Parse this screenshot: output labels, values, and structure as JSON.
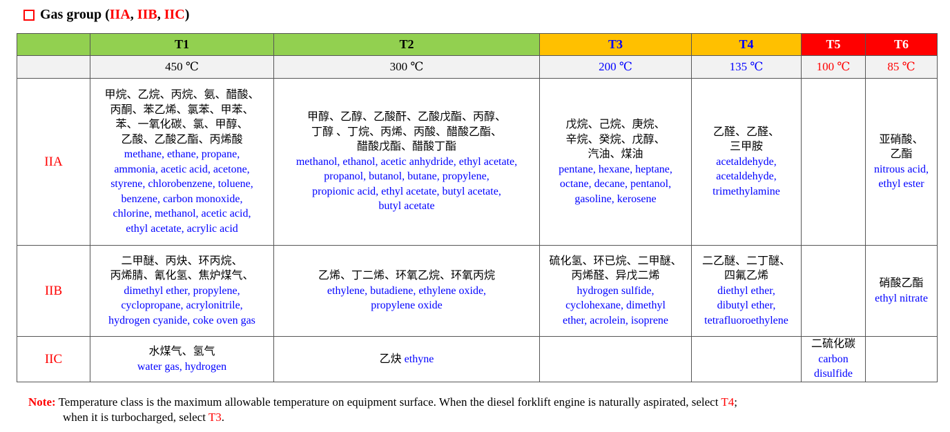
{
  "title": {
    "prefix": "Gas group (",
    "g1": "IIA",
    ",1": ", ",
    "g2": "IIB",
    ",2": ", ",
    "g3": "IIC",
    "suffix": ")",
    "sep": ", "
  },
  "header": [
    "",
    "T1",
    "T2",
    "T3",
    "T4",
    "T5",
    "T6"
  ],
  "temps": [
    "",
    "450 ℃",
    "300 ℃",
    "200 ℃",
    "135 ℃",
    "100 ℃",
    "85 ℃"
  ],
  "colors": {
    "t1_t2": "#92d050",
    "t3_t4": "#ffc000",
    "t5_t6": "#ff0000",
    "english": "#0000ff",
    "accent": "#ff0000"
  },
  "rows": [
    {
      "group": "IIA",
      "cells": [
        {
          "cn": "甲烷、乙烷、丙烷、氨、醋酸、\n丙酮、苯乙烯、氯苯、甲苯、\n苯、一氧化碳、氯、甲醇、\n乙酸、乙酸乙酯、丙烯酸",
          "en": "methane, ethane, propane,\nammonia, acetic acid, acetone,\nstyrene, chlorobenzene, toluene,\nbenzene, carbon monoxide,\nchlorine, methanol, acetic acid,\nethyl acetate, acrylic acid"
        },
        {
          "cn": "甲醇、乙醇、乙酸酐、乙酸戊酯、丙醇、\n丁醇 、丁烷、丙烯、丙酸、醋酸乙酯、\n醋酸戊酯、醋酸丁酯",
          "en": "methanol, ethanol, acetic anhydride, ethyl acetate,\npropanol, butanol, butane, propylene,\npropionic acid, ethyl acetate, butyl acetate,\nbutyl acetate"
        },
        {
          "cn": "戊烷、己烷、庚烷、\n辛烷、癸烷、戊醇、\n汽油、煤油",
          "en": "pentane, hexane, heptane,\noctane, decane, pentanol,\ngasoline, kerosene"
        },
        {
          "cn": "乙醛、乙醛、\n三甲胺",
          "en": "acetaldehyde,\nacetaldehyde,\ntrimethylamine"
        },
        {
          "cn": "",
          "en": ""
        },
        {
          "cn": "亚硝酸、\n乙酯",
          "en": "nitrous acid,\nethyl ester"
        }
      ]
    },
    {
      "group": "IIB",
      "cells": [
        {
          "cn": "二甲醚、丙炔、环丙烷、\n丙烯腈、氰化氢、焦炉煤气、",
          "en": "dimethyl ether, propylene,\ncyclopropane, acrylonitrile,\nhydrogen cyanide, coke oven gas"
        },
        {
          "cn": "乙烯、丁二烯、环氧乙烷、环氧丙烷",
          "en": "ethylene, butadiene, ethylene oxide,\npropylene oxide"
        },
        {
          "cn": "硫化氢、环已烷、二甲醚、\n丙烯醛、异戊二烯",
          "en": "hydrogen sulfide,\ncyclohexane, dimethyl\nether, acrolein, isoprene"
        },
        {
          "cn": "二乙醚、二丁醚、\n四氟乙烯",
          "en": "diethyl ether,\ndibutyl ether,\ntetrafluoroethylene"
        },
        {
          "cn": "",
          "en": ""
        },
        {
          "cn": "硝酸乙酯",
          "en": "ethyl nitrate"
        }
      ]
    },
    {
      "group": "IIC",
      "cells": [
        {
          "cn": "水煤气、氢气",
          "en": "water gas, hydrogen"
        },
        {
          "cn": "乙炔 ",
          "en": "ethyne",
          "inline": true
        },
        {
          "cn": "",
          "en": ""
        },
        {
          "cn": "",
          "en": ""
        },
        {
          "cn": "二硫化碳",
          "en": "carbon\ndisulfide"
        },
        {
          "cn": "",
          "en": ""
        }
      ]
    }
  ],
  "note": {
    "label": "Note:",
    "text1": " Temperature class is the maximum allowable temperature on equipment surface. When the diesel forklift engine is naturally aspirated, select ",
    "t4": "T4",
    "text2": ";",
    "text3": "when it is turbocharged, select ",
    "t3": "T3",
    "text4": "."
  }
}
